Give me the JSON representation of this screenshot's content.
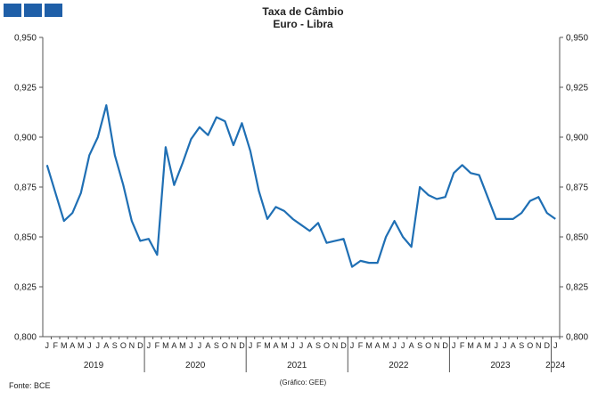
{
  "colors": {
    "brand": "#1f5fa8",
    "series": "#1f6fb4",
    "axis": "#555555"
  },
  "header": {
    "logo_icon": "bce-logo-icon",
    "title_line1": "Taxa de Câmbio",
    "title_line2": "Euro - Libra"
  },
  "footer": {
    "source": "Fonte: BCE",
    "credit": "(Gráfico: GEE)"
  },
  "chart_data": {
    "type": "line",
    "title": "Taxa de Câmbio Euro - Libra",
    "ylim": [
      0.8,
      0.95
    ],
    "y_ticks": [
      "0,800",
      "0,825",
      "0,850",
      "0,875",
      "0,900",
      "0,925",
      "0,950"
    ],
    "grid": false,
    "month_labels": [
      "J",
      "F",
      "M",
      "A",
      "M",
      "J",
      "J",
      "A",
      "S",
      "O",
      "N",
      "D"
    ],
    "years": [
      "2019",
      "2020",
      "2021",
      "2022",
      "2023",
      "2024"
    ],
    "x": [
      "2019-01",
      "2019-02",
      "2019-03",
      "2019-04",
      "2019-05",
      "2019-06",
      "2019-07",
      "2019-08",
      "2019-09",
      "2019-10",
      "2019-11",
      "2019-12",
      "2020-01",
      "2020-02",
      "2020-03",
      "2020-04",
      "2020-05",
      "2020-06",
      "2020-07",
      "2020-08",
      "2020-09",
      "2020-10",
      "2020-11",
      "2020-12",
      "2021-01",
      "2021-02",
      "2021-03",
      "2021-04",
      "2021-05",
      "2021-06",
      "2021-07",
      "2021-08",
      "2021-09",
      "2021-10",
      "2021-11",
      "2021-12",
      "2022-01",
      "2022-02",
      "2022-03",
      "2022-04",
      "2022-05",
      "2022-06",
      "2022-07",
      "2022-08",
      "2022-09",
      "2022-10",
      "2022-11",
      "2022-12",
      "2023-01",
      "2023-02",
      "2023-03",
      "2023-04",
      "2023-05",
      "2023-06",
      "2023-07",
      "2023-08",
      "2023-09",
      "2023-10",
      "2023-11",
      "2023-12",
      "2024-01"
    ],
    "series": [
      {
        "values": [
          0.886,
          0.872,
          0.858,
          0.862,
          0.872,
          0.891,
          0.9,
          0.916,
          0.891,
          0.876,
          0.858,
          0.848,
          0.849,
          0.841,
          0.895,
          0.876,
          0.887,
          0.899,
          0.905,
          0.901,
          0.91,
          0.908,
          0.896,
          0.907,
          0.893,
          0.873,
          0.859,
          0.865,
          0.863,
          0.859,
          0.856,
          0.853,
          0.857,
          0.847,
          0.848,
          0.849,
          0.835,
          0.838,
          0.837,
          0.837,
          0.85,
          0.858,
          0.85,
          0.845,
          0.875,
          0.871,
          0.869,
          0.87,
          0.882,
          0.886,
          0.882,
          0.881,
          0.87,
          0.859,
          0.859,
          0.859,
          0.862,
          0.868,
          0.87,
          0.862,
          0.859
        ]
      }
    ]
  }
}
